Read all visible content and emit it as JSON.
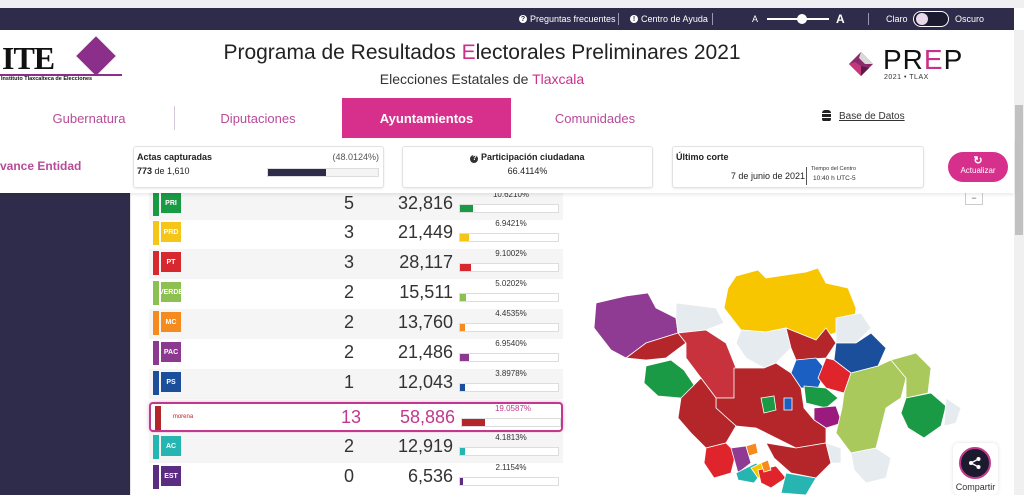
{
  "topbar": {
    "faq": "Preguntas frecuentes",
    "help": "Centro de Ayuda",
    "font_small": "A",
    "font_large": "A",
    "theme_light": "Claro",
    "theme_dark": "Oscuro"
  },
  "header": {
    "logo_text": "ITE",
    "logo_sub": "Instituto Tlaxcalteca de Elecciones",
    "title_pre": "Programa de Resultados ",
    "title_E": "E",
    "title_post": "lectorales Preliminares 2021",
    "subtitle_pre": "Elecciones Estatales de ",
    "subtitle_state": "Tlaxcala",
    "prep_pre": "PR",
    "prep_e": "E",
    "prep_post": "P",
    "prep_sub": "2021 • TLAX"
  },
  "tabs": [
    {
      "label": "Gubernatura",
      "active": false
    },
    {
      "label": "Diputaciones",
      "active": false
    },
    {
      "label": "Ayuntamientos",
      "active": true
    },
    {
      "label": "Comunidades",
      "active": false
    }
  ],
  "database_link": "Base de Datos",
  "status": {
    "section_label": "vance Entidad",
    "actas_title": "Actas capturadas",
    "actas_pct": "(48.0124%)",
    "actas_captured": "773",
    "actas_of": " de 1,610",
    "actas_progress": 48.0124,
    "participation_title": "Participación ciudadana",
    "participation_value": "66.4114%",
    "last_cut_title": "Último corte",
    "last_cut_date": "7 de junio de 2021",
    "timezone_label": "Tiempo del Centro",
    "last_cut_time": "10:40 h UTC-5",
    "refresh_label": "Actualizar"
  },
  "parties": [
    {
      "name": "PRI-PRD",
      "logo": "PRI",
      "color": "#1a9a44",
      "wins": "5",
      "votes": "32,816",
      "pct": "10.6210%",
      "pct_num": 10.621,
      "highlight": false
    },
    {
      "name": "PRD",
      "logo": "PRD",
      "color": "#f5c518",
      "wins": "3",
      "votes": "21,449",
      "pct": "6.9421%",
      "pct_num": 6.9421,
      "highlight": false
    },
    {
      "name": "PT",
      "logo": "PT",
      "color": "#d7282f",
      "wins": "3",
      "votes": "28,117",
      "pct": "9.1002%",
      "pct_num": 9.1002,
      "highlight": false
    },
    {
      "name": "Verde",
      "logo": "VERDE",
      "color": "#8cc152",
      "wins": "2",
      "votes": "15,511",
      "pct": "5.0202%",
      "pct_num": 5.0202,
      "highlight": false
    },
    {
      "name": "Movimiento Ciudadano",
      "logo": "MC",
      "color": "#f58a1f",
      "wins": "2",
      "votes": "13,760",
      "pct": "4.4535%",
      "pct_num": 4.4535,
      "highlight": false
    },
    {
      "name": "PAC",
      "logo": "PAC",
      "color": "#8b3a8f",
      "wins": "2",
      "votes": "21,486",
      "pct": "6.9540%",
      "pct_num": 6.954,
      "highlight": false
    },
    {
      "name": "PS",
      "logo": "PS",
      "color": "#1b4f9c",
      "wins": "1",
      "votes": "12,043",
      "pct": "3.8978%",
      "pct_num": 3.8978,
      "highlight": false
    },
    {
      "name": "Morena",
      "logo": "morena",
      "color": "#b5262b",
      "wins": "13",
      "votes": "58,886",
      "pct": "19.0587%",
      "pct_num": 19.0587,
      "highlight": true
    },
    {
      "name": "Alianza Ciudadana",
      "logo": "AC",
      "color": "#26b5b0",
      "wins": "2",
      "votes": "12,919",
      "pct": "4.1813%",
      "pct_num": 4.1813,
      "highlight": false
    },
    {
      "name": "Encuentro Social Tlaxcala",
      "logo": "EST",
      "color": "#5b2c82",
      "wins": "0",
      "votes": "6,536",
      "pct": "2.1154%",
      "pct_num": 2.1154,
      "highlight": false
    }
  ],
  "map": {
    "zoom_out": "−"
  },
  "share_label": "Compartir"
}
